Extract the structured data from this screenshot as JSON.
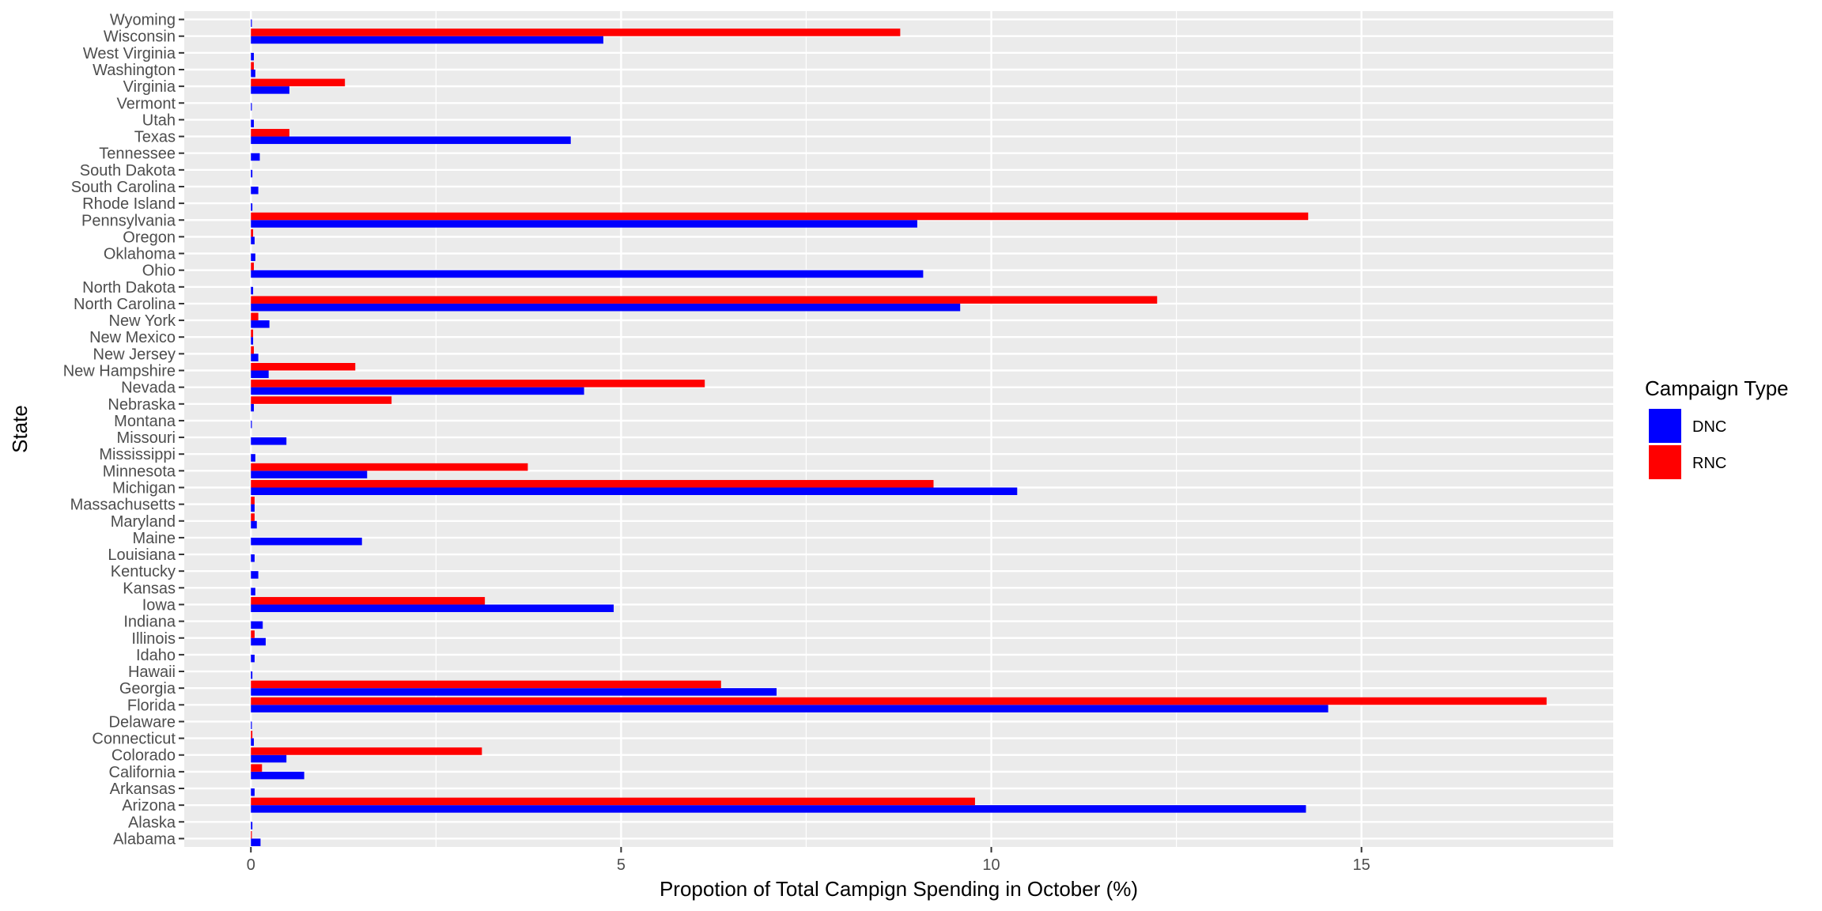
{
  "chart_data": {
    "type": "bar",
    "orientation": "horizontal",
    "xlabel": "Propotion of Total Campign Spending in October (%)",
    "ylabel": "State",
    "xlim": [
      -0.9,
      18.4
    ],
    "xticks": [
      0,
      5,
      10,
      15
    ],
    "grid": true,
    "legend": {
      "title": "Campaign Type",
      "position": "right"
    },
    "categories": [
      "Alabama",
      "Alaska",
      "Arizona",
      "Arkansas",
      "California",
      "Colorado",
      "Connecticut",
      "Delaware",
      "Florida",
      "Georgia",
      "Hawaii",
      "Idaho",
      "Illinois",
      "Indiana",
      "Iowa",
      "Kansas",
      "Kentucky",
      "Louisiana",
      "Maine",
      "Maryland",
      "Massachusetts",
      "Michigan",
      "Minnesota",
      "Mississippi",
      "Missouri",
      "Montana",
      "Nebraska",
      "Nevada",
      "New Hampshire",
      "New Jersey",
      "New Mexico",
      "New York",
      "North Carolina",
      "North Dakota",
      "Ohio",
      "Oklahoma",
      "Oregon",
      "Pennsylvania",
      "Rhode Island",
      "South Carolina",
      "South Dakota",
      "Tennessee",
      "Texas",
      "Utah",
      "Vermont",
      "Virginia",
      "Washington",
      "West Virginia",
      "Wisconsin",
      "Wyoming"
    ],
    "series": [
      {
        "name": "DNC",
        "color": "#0000ff",
        "values": [
          0.13,
          0.02,
          14.25,
          0.05,
          0.72,
          0.48,
          0.04,
          0.01,
          14.55,
          7.1,
          0.02,
          0.05,
          0.2,
          0.16,
          4.9,
          0.06,
          0.1,
          0.05,
          1.5,
          0.08,
          0.05,
          10.35,
          1.57,
          0.06,
          0.48,
          0.01,
          0.04,
          4.5,
          0.24,
          0.1,
          0.03,
          0.25,
          9.58,
          0.03,
          9.08,
          0.06,
          0.05,
          9.0,
          0.02,
          0.1,
          0.02,
          0.12,
          4.32,
          0.04,
          0.01,
          0.52,
          0.06,
          0.04,
          4.76,
          0.01
        ]
      },
      {
        "name": "RNC",
        "color": "#ff0000",
        "values": [
          0.01,
          0.0,
          9.78,
          0.0,
          0.15,
          3.12,
          0.02,
          0.0,
          17.5,
          6.35,
          0.0,
          0.0,
          0.05,
          0.0,
          3.16,
          0.0,
          0.0,
          0.0,
          0.0,
          0.05,
          0.05,
          9.22,
          3.74,
          0.0,
          0.0,
          0.0,
          1.9,
          6.13,
          1.41,
          0.04,
          0.03,
          0.1,
          12.24,
          0.0,
          0.04,
          0.0,
          0.03,
          14.28,
          0.0,
          0.0,
          0.0,
          0.0,
          0.52,
          0.0,
          0.0,
          1.27,
          0.04,
          0.0,
          8.77,
          0.0
        ]
      }
    ]
  }
}
